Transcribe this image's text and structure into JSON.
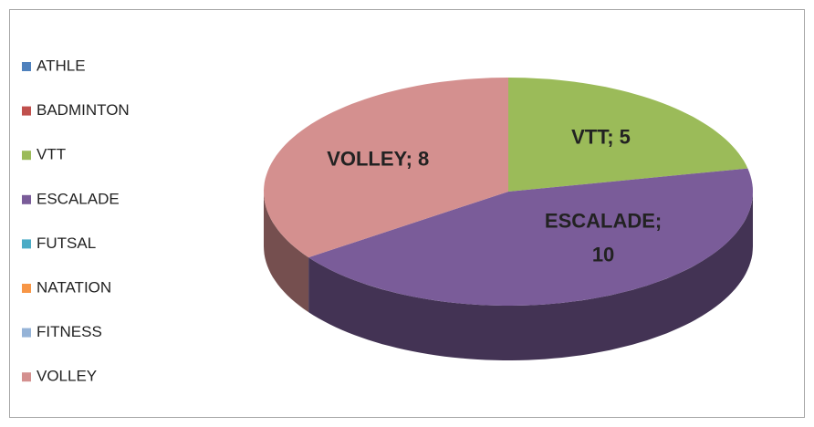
{
  "chart_data": {
    "type": "pie3d",
    "categories": [
      "ATHLE",
      "BADMINTON",
      "VTT",
      "ESCALADE",
      "FUTSAL",
      "NATATION",
      "FITNESS",
      "VOLLEY"
    ],
    "values": [
      0,
      0,
      5,
      10,
      0,
      0,
      0,
      8
    ],
    "value_labels": [
      null,
      null,
      "VTT; 5",
      "ESCALADE; 10",
      null,
      null,
      null,
      "VOLLEY; 8"
    ],
    "colors": [
      "#4f81bd",
      "#c0504d",
      "#9bbb59",
      "#7a5c99",
      "#4bacc6",
      "#f79646",
      "#95b3d7",
      "#d4908f"
    ],
    "legend": "left"
  }
}
